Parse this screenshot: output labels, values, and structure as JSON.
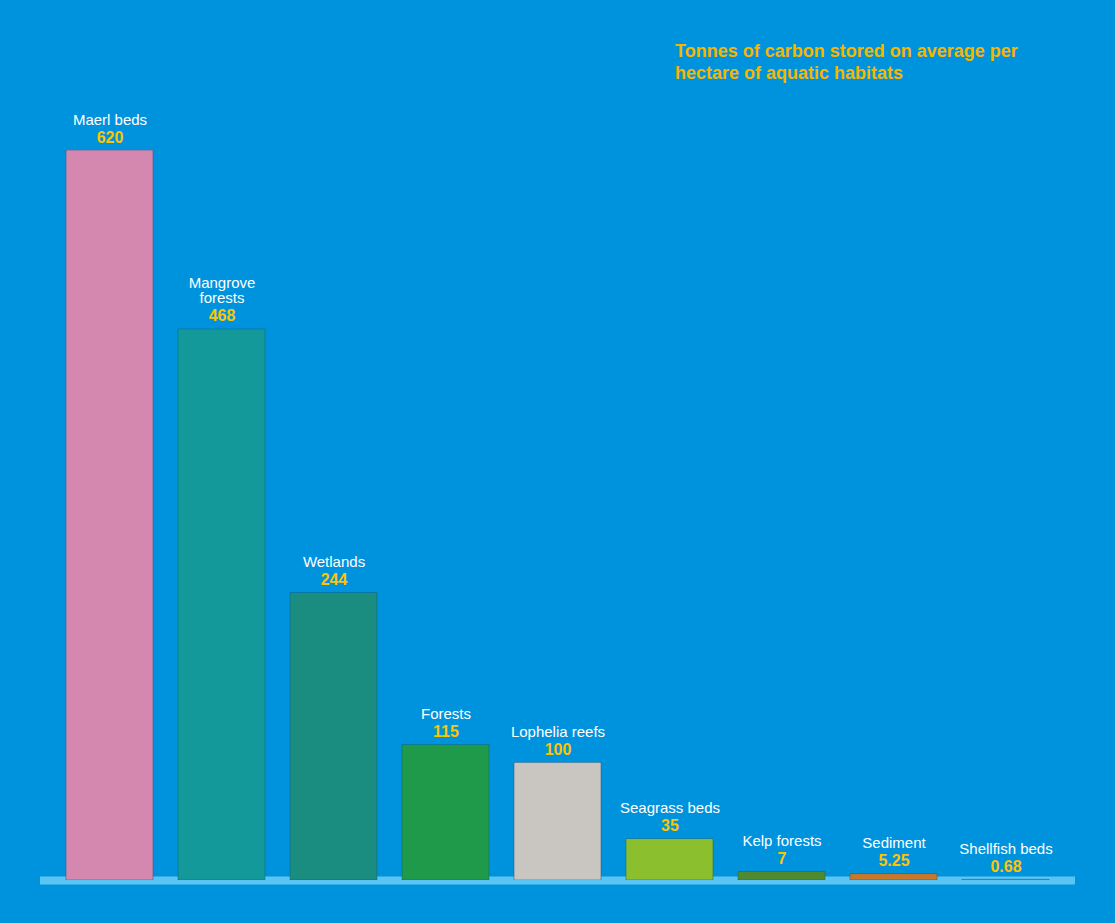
{
  "chart_data": {
    "type": "bar",
    "title": "Tonnes of carbon stored on average per hectare of aquatic habitats",
    "categories": [
      "Maerl beds",
      "Mangrove forests",
      "Wetlands",
      "Forests",
      "Lophelia reefs",
      "Seagrass beds",
      "Kelp forests",
      "Sediment",
      "Shellfish beds"
    ],
    "values": [
      620,
      468,
      244,
      115,
      100,
      35,
      7,
      5.25,
      0.68
    ],
    "colors": [
      "#d488b0",
      "#14999a",
      "#1a8c80",
      "#1e9a4a",
      "#c9c5c0",
      "#8cbf2e",
      "#4f8a2e",
      "#c8782a",
      "#f2cf8a"
    ],
    "data_labels": true,
    "tick_labels": false
  }
}
